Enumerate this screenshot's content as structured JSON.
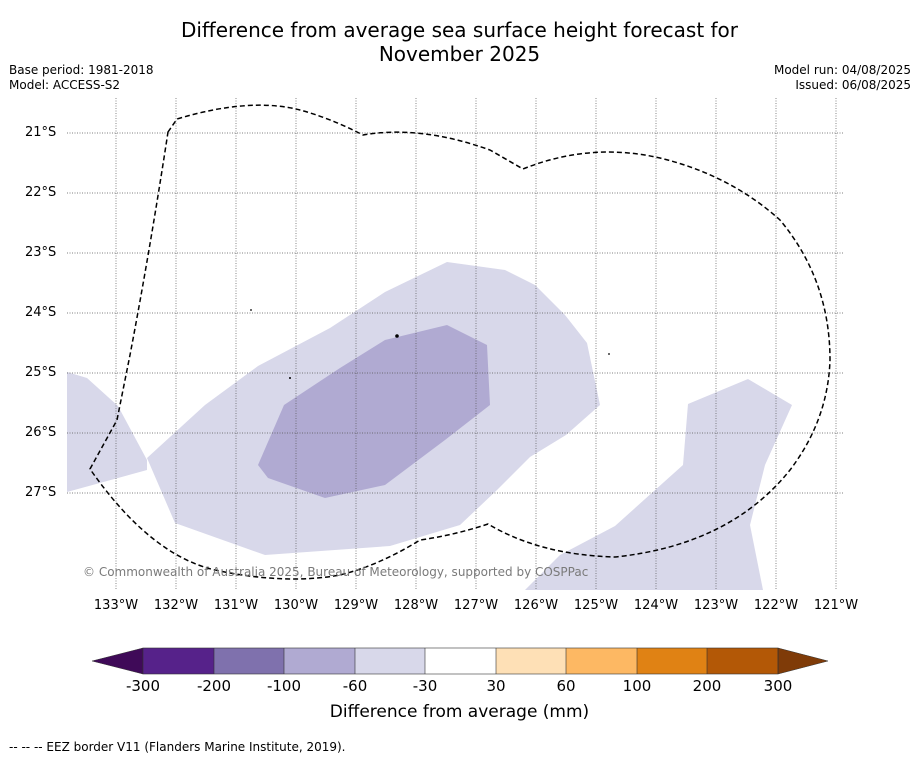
{
  "title_line1": "Difference from average sea surface height forecast for",
  "title_line2": "November 2025",
  "meta_left": [
    "Base period: 1981-2018",
    "Model: ACCESS-S2"
  ],
  "meta_right": [
    "Model run: 04/08/2025",
    "Issued: 06/08/2025"
  ],
  "copyright": "© Commonwealth of Australia 2025, Bureau of Meteorology, supported by COSPPac",
  "map": {
    "lon_range": [
      -133.8,
      -120.9
    ],
    "lat_range": [
      -28.6,
      -20.4
    ],
    "lat_ticks": [
      "21°S",
      "22°S",
      "23°S",
      "24°S",
      "25°S",
      "26°S",
      "27°S"
    ],
    "lon_ticks": [
      "133°W",
      "132°W",
      "131°W",
      "130°W",
      "129°W",
      "128°W",
      "127°W",
      "126°W",
      "125°W",
      "124°W",
      "123°W",
      "122°W",
      "121°W"
    ],
    "grid": true,
    "border_style": "dashed",
    "anomaly_colors": {
      "-60 to -30": "#d8d8ea",
      "-100 to -60": "#b0aad2"
    }
  },
  "colorbar": {
    "colors": [
      "#3f0a58",
      "#56228a",
      "#7f71ad",
      "#b0aad2",
      "#d8d8ea",
      "#ffffff",
      "#fee0b6",
      "#fdb863",
      "#e08214",
      "#b35806",
      "#7f3b08"
    ],
    "tick_labels": [
      "-300",
      "-200",
      "-100",
      "-60",
      "-30",
      "30",
      "60",
      "100",
      "200",
      "300"
    ],
    "label": "Difference from average (mm)"
  },
  "footnote": "--  --  -- EEZ border V11 (Flanders Marine Institute, 2019)."
}
